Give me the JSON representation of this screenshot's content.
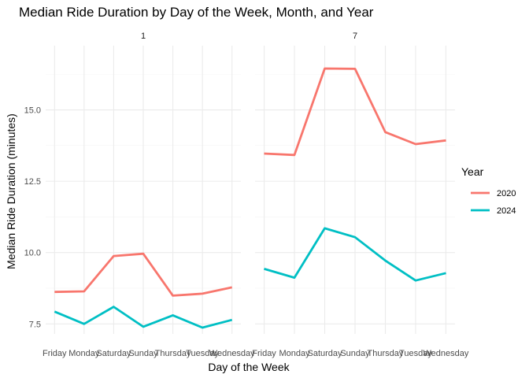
{
  "chart_data": {
    "type": "line",
    "title": "Median Ride Duration by Day of the Week, Month, and Year",
    "xlabel": "Day of the Week",
    "ylabel": "Median Ride Duration (minutes)",
    "categories": [
      "Friday",
      "Monday",
      "Saturday",
      "Sunday",
      "Thursday",
      "Tuesday",
      "Wednesday"
    ],
    "ylim": [
      7.15,
      17.25
    ],
    "yticks": [
      7.5,
      10.0,
      12.5,
      15.0
    ],
    "ytick_labels": [
      "7.5",
      "10.0",
      "12.5",
      "15.0"
    ],
    "grid": true,
    "legend": {
      "title": "Year",
      "placement": "right",
      "entries": [
        {
          "label": "2020",
          "color": "#f8766d"
        },
        {
          "label": "2024",
          "color": "#00bfc4"
        }
      ]
    },
    "facets": [
      {
        "label": "1",
        "series": [
          {
            "name": "2020",
            "color": "#f8766d",
            "values": [
              8.62,
              8.64,
              9.88,
              9.96,
              8.49,
              8.56,
              8.78
            ]
          },
          {
            "name": "2024",
            "color": "#00bfc4",
            "values": [
              7.93,
              7.5,
              8.1,
              7.4,
              7.8,
              7.37,
              7.64
            ]
          }
        ]
      },
      {
        "label": "7",
        "series": [
          {
            "name": "2020",
            "color": "#f8766d",
            "values": [
              13.47,
              13.42,
              16.45,
              16.44,
              14.22,
              13.8,
              13.93
            ]
          },
          {
            "name": "2024",
            "color": "#00bfc4",
            "values": [
              9.43,
              9.12,
              10.85,
              10.54,
              9.72,
              9.02,
              9.28
            ]
          }
        ]
      }
    ]
  }
}
